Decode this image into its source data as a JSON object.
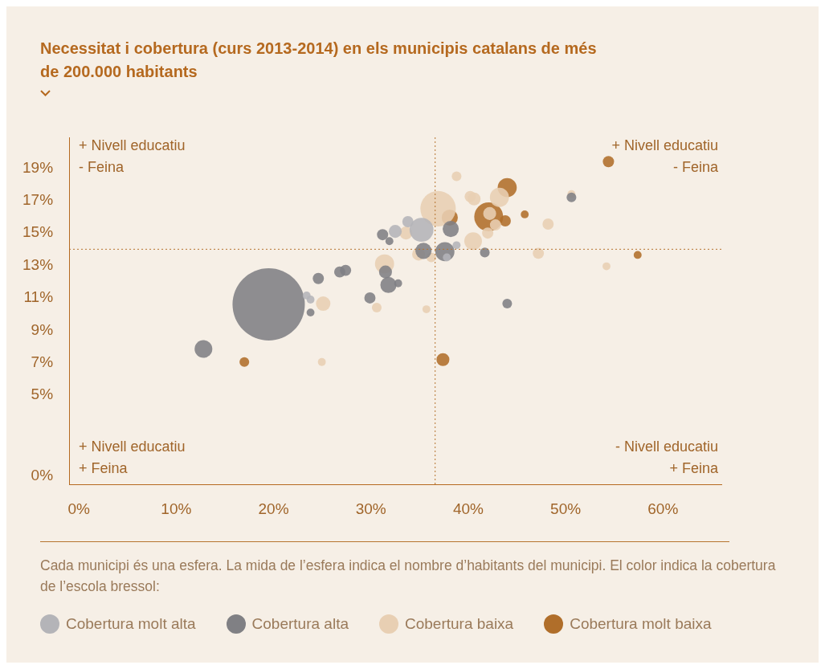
{
  "chart_data": {
    "type": "bubble",
    "title": "Necessitat i cobertura (curs 2013-2014) en els municipis catalans de més de 200.000 habitants",
    "xlim": [
      -1,
      66
    ],
    "xticks": [
      {
        "value": 0,
        "label": "0%"
      },
      {
        "value": 10,
        "label": "10%"
      },
      {
        "value": 20,
        "label": "20%"
      },
      {
        "value": 30,
        "label": "30%"
      },
      {
        "value": 40,
        "label": "40%"
      },
      {
        "value": 50,
        "label": "50%"
      },
      {
        "value": 60,
        "label": "60%"
      }
    ],
    "ylim": [
      -0.5,
      20.9
    ],
    "yticks": [
      {
        "value": 0,
        "label": "0%"
      },
      {
        "value": 5,
        "label": "5%"
      },
      {
        "value": 7,
        "label": "7%"
      },
      {
        "value": 9,
        "label": "9%"
      },
      {
        "value": 11,
        "label": "11%"
      },
      {
        "value": 13,
        "label": "13%"
      },
      {
        "value": 15,
        "label": "15%"
      },
      {
        "value": 17,
        "label": "17%"
      },
      {
        "value": 19,
        "label": "19%"
      }
    ],
    "grid": false,
    "legend": "bottom",
    "ref_lines": [
      {
        "axis": "x",
        "value": 36.6,
        "color": "#b5732f",
        "line_style": "dotted"
      },
      {
        "axis": "y",
        "value": 14,
        "color": "#b5732f",
        "line_style": "dotted"
      }
    ],
    "annotations": [
      "+ Nivell educatiu\n- Feina",
      "+ Nivell educatiu\n- Feina",
      "+ Nivell educatiu\n+ Feina",
      "- Nivell educatiu\n+ Feina",
      "Cada municipi és una esfera. La mida de l’esfera indica el nombre d’habitants del municipi. El color indica la cobertura de l’escola bressol:"
    ],
    "series": [
      {
        "name": "Cobertura molt alta",
        "color": "#b4b4b8",
        "x": [
          35.2,
          32.5,
          33.8,
          23.4,
          23.8,
          38.8,
          37.8
        ],
        "values": [
          15.2,
          15.1,
          15.7,
          11.15,
          10.9,
          14.25,
          13.5
        ],
        "sizes": [
          0.11,
          0.032,
          0.024,
          0.012,
          0.012,
          0.012,
          0.012
        ]
      },
      {
        "name": "Cobertura alta",
        "color": "#808084",
        "x": [
          19.5,
          12.8,
          23.8,
          24.6,
          26.8,
          27.4,
          29.9,
          31.2,
          31.5,
          31.8,
          32.8,
          31.9,
          35.4,
          37.6,
          38.2,
          41.7,
          44.0,
          50.6
        ],
        "values": [
          10.6,
          7.85,
          10.1,
          12.2,
          12.6,
          12.7,
          11.0,
          14.9,
          12.6,
          11.8,
          11.9,
          14.5,
          13.9,
          13.85,
          15.25,
          13.8,
          10.65,
          17.2
        ],
        "sizes": [
          1,
          0.06,
          0.012,
          0.024,
          0.024,
          0.024,
          0.024,
          0.024,
          0.032,
          0.05,
          0.012,
          0.012,
          0.05,
          0.07,
          0.05,
          0.018,
          0.018,
          0.018
        ]
      },
      {
        "name": "Cobertura baixa",
        "color": "#e8cfb3",
        "x": [
          36.9,
          31.4,
          25.1,
          24.96,
          30.6,
          35.7,
          38.8,
          40.2,
          40.6,
          43.2,
          40.5,
          34.9,
          36.2,
          33.6,
          42.2,
          42.8,
          42.0,
          48.2,
          47.2,
          54.2,
          50.6
        ],
        "values": [
          16.5,
          13.1,
          10.65,
          7.05,
          10.4,
          10.3,
          18.5,
          17.25,
          17.1,
          17.2,
          14.5,
          13.7,
          13.5,
          15.0,
          16.2,
          15.5,
          15.0,
          15.55,
          13.75,
          12.95,
          17.4
        ],
        "sizes": [
          0.24,
          0.07,
          0.04,
          0.012,
          0.018,
          0.012,
          0.018,
          0.024,
          0.032,
          0.07,
          0.06,
          0.032,
          0.018,
          0.032,
          0.032,
          0.024,
          0.024,
          0.024,
          0.024,
          0.012,
          0.012
        ]
      },
      {
        "name": "Cobertura molt baixa",
        "color": "#b06e2a",
        "x": [
          42.1,
          44.0,
          38.1,
          43.8,
          45.8,
          54.4,
          57.4,
          37.4,
          17.0
        ],
        "values": [
          16.0,
          17.8,
          15.95,
          15.75,
          16.15,
          19.4,
          13.65,
          7.2,
          7.05
        ],
        "sizes": [
          0.16,
          0.07,
          0.05,
          0.024,
          0.012,
          0.024,
          0.012,
          0.032,
          0.018
        ]
      }
    ]
  }
}
